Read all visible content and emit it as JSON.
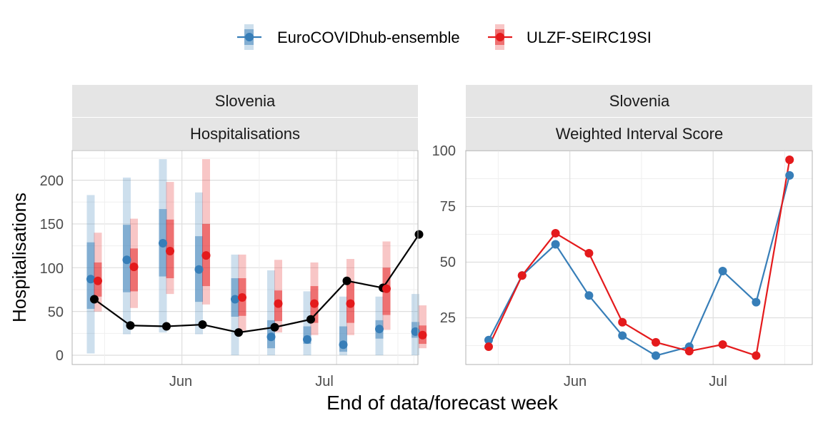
{
  "legend": {
    "items": [
      {
        "name": "EuroCOVIDhub-ensemble",
        "color": "#377eb8"
      },
      {
        "name": "ULZF-SEIRC19SI",
        "color": "#e41a1c"
      }
    ]
  },
  "xlabel": "End of data/forecast week",
  "colors": {
    "observed": "#000000",
    "grid_major": "#dedede",
    "grid_minor": "#efefef",
    "strip_bg": "#e5e5e5",
    "panel_border": "#b3b3b3"
  },
  "panels": [
    {
      "strip_top": "Slovenia",
      "strip_bottom": "Hospitalisations",
      "ylabel": "Hospitalisations",
      "x_ticks": [
        "Jun",
        "Jul"
      ],
      "y_ticks": [
        "0",
        "50",
        "100",
        "150",
        "200"
      ]
    },
    {
      "strip_top": "Slovenia",
      "strip_bottom": "Weighted Interval Score",
      "ylabel": "",
      "x_ticks": [
        "Jun",
        "Jul"
      ],
      "y_ticks": [
        "25",
        "50",
        "75",
        "100"
      ]
    }
  ],
  "chart_data": [
    {
      "type": "line",
      "title": "Slovenia — Hospitalisations",
      "x": [
        "2021-05-15",
        "2021-05-22",
        "2021-05-29",
        "2021-06-05",
        "2021-06-12",
        "2021-06-19",
        "2021-06-26",
        "2021-07-03",
        "2021-07-10",
        "2021-07-17"
      ],
      "x_tick_positions": {
        "Jun": "2021-06-01",
        "Jul": "2021-07-01"
      },
      "ylim": [
        -10,
        234
      ],
      "observed": [
        64,
        34,
        33,
        35,
        26,
        32,
        41,
        85,
        77,
        138
      ],
      "series": [
        {
          "name": "EuroCOVIDhub-ensemble",
          "median": [
            87,
            109,
            128,
            98,
            64,
            21,
            18,
            12,
            30,
            27
          ],
          "inner": [
            [
              53,
              129
            ],
            [
              72,
              149
            ],
            [
              90,
              167
            ],
            [
              61,
              136
            ],
            [
              44,
              88
            ],
            [
              8,
              40
            ],
            [
              13,
              33
            ],
            [
              4,
              33
            ],
            [
              19,
              40
            ],
            [
              20,
              38
            ]
          ],
          "outer": [
            [
              2,
              183
            ],
            [
              24,
              203
            ],
            [
              26,
              224
            ],
            [
              24,
              186
            ],
            [
              0,
              115
            ],
            [
              0,
              97
            ],
            [
              0,
              73
            ],
            [
              0,
              67
            ],
            [
              0,
              67
            ],
            [
              0,
              70
            ]
          ]
        },
        {
          "name": "ULZF-SEIRC19SI",
          "median": [
            85,
            101,
            119,
            114,
            66,
            59,
            59,
            59,
            76,
            23
          ],
          "inner": [
            [
              67,
              106
            ],
            [
              73,
              122
            ],
            [
              88,
              155
            ],
            [
              79,
              150
            ],
            [
              45,
              88
            ],
            [
              39,
              74
            ],
            [
              37,
              79
            ],
            [
              37,
              83
            ],
            [
              46,
              100
            ],
            [
              13,
              34
            ]
          ],
          "outer": [
            [
              50,
              140
            ],
            [
              54,
              156
            ],
            [
              70,
              198
            ],
            [
              58,
              224
            ],
            [
              28,
              115
            ],
            [
              26,
              109
            ],
            [
              23,
              106
            ],
            [
              23,
              110
            ],
            [
              29,
              130
            ],
            [
              8,
              57
            ]
          ]
        }
      ]
    },
    {
      "type": "line",
      "title": "Slovenia — Weighted Interval Score",
      "x": [
        "2021-05-15",
        "2021-05-22",
        "2021-05-29",
        "2021-06-05",
        "2021-06-12",
        "2021-06-19",
        "2021-06-26",
        "2021-07-03",
        "2021-07-10",
        "2021-07-17"
      ],
      "x_tick_positions": {
        "Jun": "2021-06-01",
        "Jul": "2021-07-01"
      },
      "ylim": [
        4,
        104
      ],
      "series": [
        {
          "name": "EuroCOVIDhub-ensemble",
          "values": [
            15,
            44,
            58,
            35,
            17,
            8,
            12,
            46,
            32,
            89
          ]
        },
        {
          "name": "ULZF-SEIRC19SI",
          "values": [
            12,
            44,
            63,
            54,
            23,
            14,
            10,
            13,
            8,
            96
          ]
        }
      ]
    }
  ]
}
